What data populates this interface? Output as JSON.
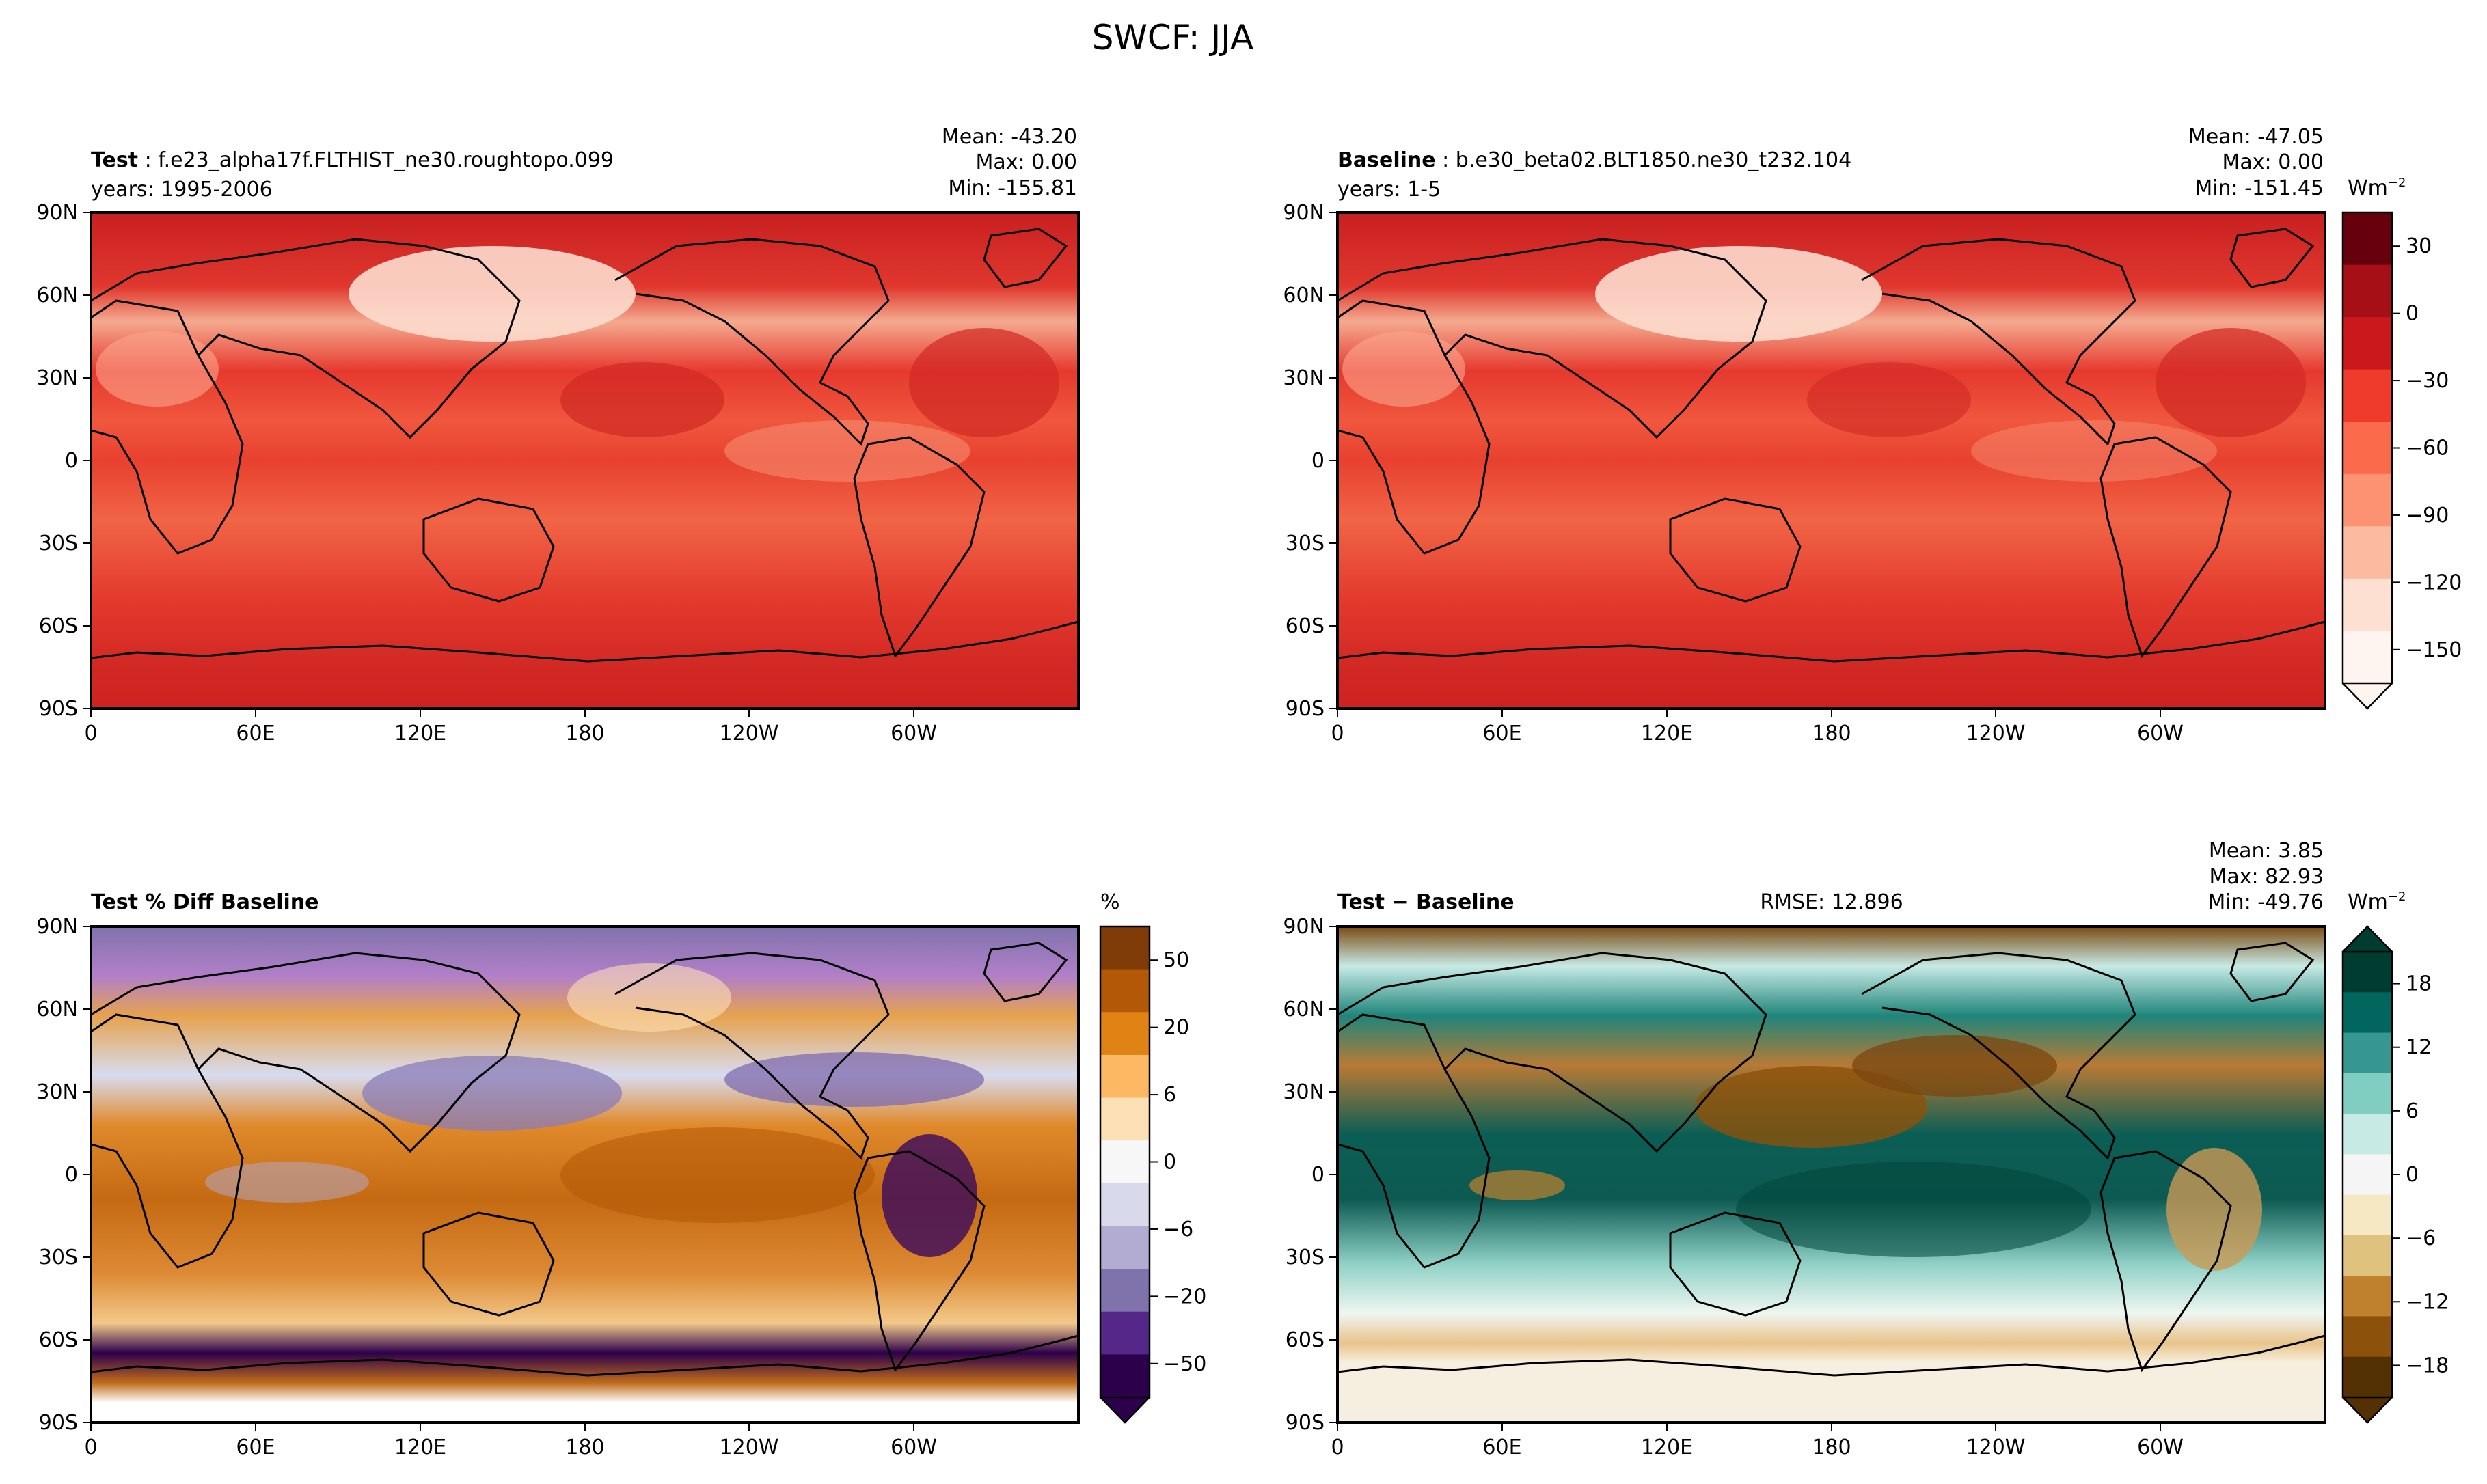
{
  "figure": {
    "title": "SWCF: JJA"
  },
  "chart_data": [
    {
      "type": "heatmap",
      "panel": "test",
      "title_bold": "Test",
      "title_rest": " : f.e23_alpha17f.FLTHIST_ne30.roughtopo.099",
      "subtitle": "years: 1995-2006",
      "stats": {
        "mean": "Mean: -43.20",
        "max": "Max:  0.00",
        "min": "Min: -155.81"
      },
      "x_ticks": [
        "0",
        "60E",
        "120E",
        "180",
        "120W",
        "60W"
      ],
      "y_ticks": [
        "90N",
        "60N",
        "30N",
        "0",
        "30S",
        "60S",
        "90S"
      ],
      "xlim": [
        0,
        360
      ],
      "ylim": [
        -90,
        90
      ],
      "colormap": "Reds_r"
    },
    {
      "type": "heatmap",
      "panel": "baseline",
      "title_bold": "Baseline",
      "title_rest": " : b.e30_beta02.BLT1850.ne30_t232.104",
      "subtitle": "years: 1-5",
      "stats": {
        "mean": "Mean: -47.05",
        "max": "Max:  0.00",
        "min": "Min: -151.45"
      },
      "x_ticks": [
        "0",
        "60E",
        "120E",
        "180",
        "120W",
        "60W"
      ],
      "y_ticks": [
        "90N",
        "60N",
        "30N",
        "0",
        "30S",
        "60S",
        "90S"
      ],
      "xlim": [
        0,
        360
      ],
      "ylim": [
        -90,
        90
      ],
      "colorbar": {
        "unit": "Wm",
        "unit_exp": "−2",
        "ticks": [
          "30",
          "0",
          "−30",
          "−60",
          "−90",
          "−120",
          "−150"
        ],
        "colors": [
          "#fff5f0",
          "#fee0d2",
          "#fcbba1",
          "#fc9272",
          "#fb6a4a",
          "#ef3b2c",
          "#cb181d",
          "#a50f15",
          "#67000d"
        ],
        "extend": "min"
      }
    },
    {
      "type": "heatmap",
      "panel": "pct_diff",
      "title_bold": "Test % Diff Baseline",
      "x_ticks": [
        "0",
        "60E",
        "120E",
        "180",
        "120W",
        "60W"
      ],
      "y_ticks": [
        "90N",
        "60N",
        "30N",
        "0",
        "30S",
        "60S",
        "90S"
      ],
      "xlim": [
        0,
        360
      ],
      "ylim": [
        -90,
        90
      ],
      "colorbar": {
        "unit": "%",
        "ticks": [
          "50",
          "20",
          "6",
          "0",
          "−6",
          "−20",
          "−50"
        ],
        "colors": [
          "#2d004b",
          "#542788",
          "#8073ac",
          "#b2abd2",
          "#d8daeb",
          "#f7f7f7",
          "#fee0b6",
          "#fdb863",
          "#e08214",
          "#b35806",
          "#7f3b08"
        ],
        "extend": "min"
      }
    },
    {
      "type": "heatmap",
      "panel": "diff",
      "title_bold": "Test",
      "title_rest": " − Baseline",
      "rmse": "RMSE: 12.896",
      "stats": {
        "mean": "Mean:  3.85",
        "max": "Max: 82.93",
        "min": "Min: -49.76"
      },
      "x_ticks": [
        "0",
        "60E",
        "120E",
        "180",
        "120W",
        "60W"
      ],
      "y_ticks": [
        "90N",
        "60N",
        "30N",
        "0",
        "30S",
        "60S",
        "90S"
      ],
      "xlim": [
        0,
        360
      ],
      "ylim": [
        -90,
        90
      ],
      "colorbar": {
        "unit": "Wm",
        "unit_exp": "−2",
        "ticks": [
          "18",
          "12",
          "6",
          "0",
          "−6",
          "−12",
          "−18"
        ],
        "colors": [
          "#543005",
          "#8c510a",
          "#bf812d",
          "#dfc27d",
          "#f6e8c3",
          "#f5f5f5",
          "#c7eae5",
          "#80cdc1",
          "#35978f",
          "#01665e",
          "#003c30"
        ],
        "extend": "both"
      }
    }
  ]
}
